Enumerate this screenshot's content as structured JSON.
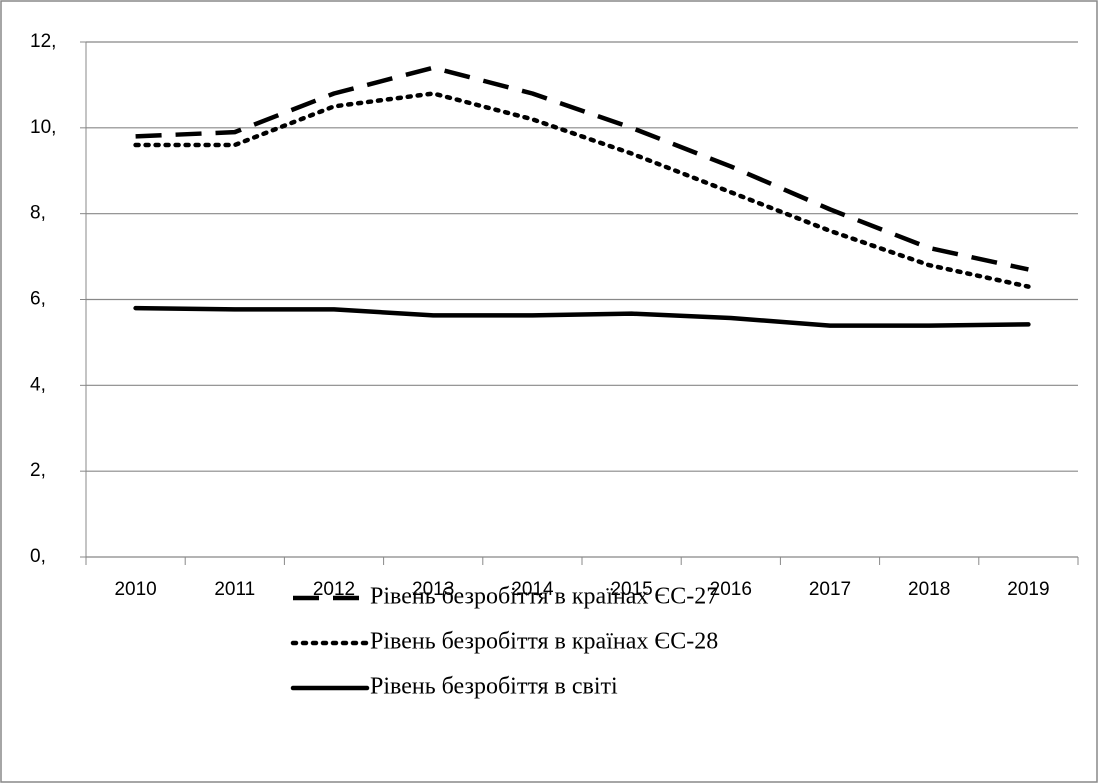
{
  "chart_data": {
    "type": "line",
    "categories": [
      "2010",
      "2011",
      "2012",
      "2013",
      "2014",
      "2015",
      "2016",
      "2017",
      "2018",
      "2019"
    ],
    "series": [
      {
        "name": "Рівень безробіття в країнах ЄС-27",
        "color": "#000000",
        "style": "dashed",
        "values": [
          9.8,
          9.9,
          10.8,
          11.4,
          10.8,
          10.0,
          9.1,
          8.1,
          7.2,
          6.7
        ]
      },
      {
        "name": "Рівень безробіття в країнах ЄС-28",
        "color": "#000000",
        "style": "dotted",
        "values": [
          9.6,
          9.6,
          10.5,
          10.8,
          10.2,
          9.4,
          8.5,
          7.6,
          6.8,
          6.3
        ]
      },
      {
        "name": "Рівень безробіття в світі",
        "color": "#000000",
        "style": "solid",
        "values": [
          5.8,
          5.77,
          5.77,
          5.63,
          5.63,
          5.67,
          5.57,
          5.39,
          5.39,
          5.42
        ]
      }
    ],
    "ylim": [
      0,
      12
    ],
    "yticks": [
      {
        "value": 0,
        "label": "0,"
      },
      {
        "value": 2,
        "label": "2,"
      },
      {
        "value": 4,
        "label": "4,"
      },
      {
        "value": 6,
        "label": "6,"
      },
      {
        "value": 8,
        "label": "8,"
      },
      {
        "value": 10,
        "label": "10,"
      },
      {
        "value": 12,
        "label": "12,"
      }
    ],
    "grid": true,
    "legend": "bottom"
  }
}
